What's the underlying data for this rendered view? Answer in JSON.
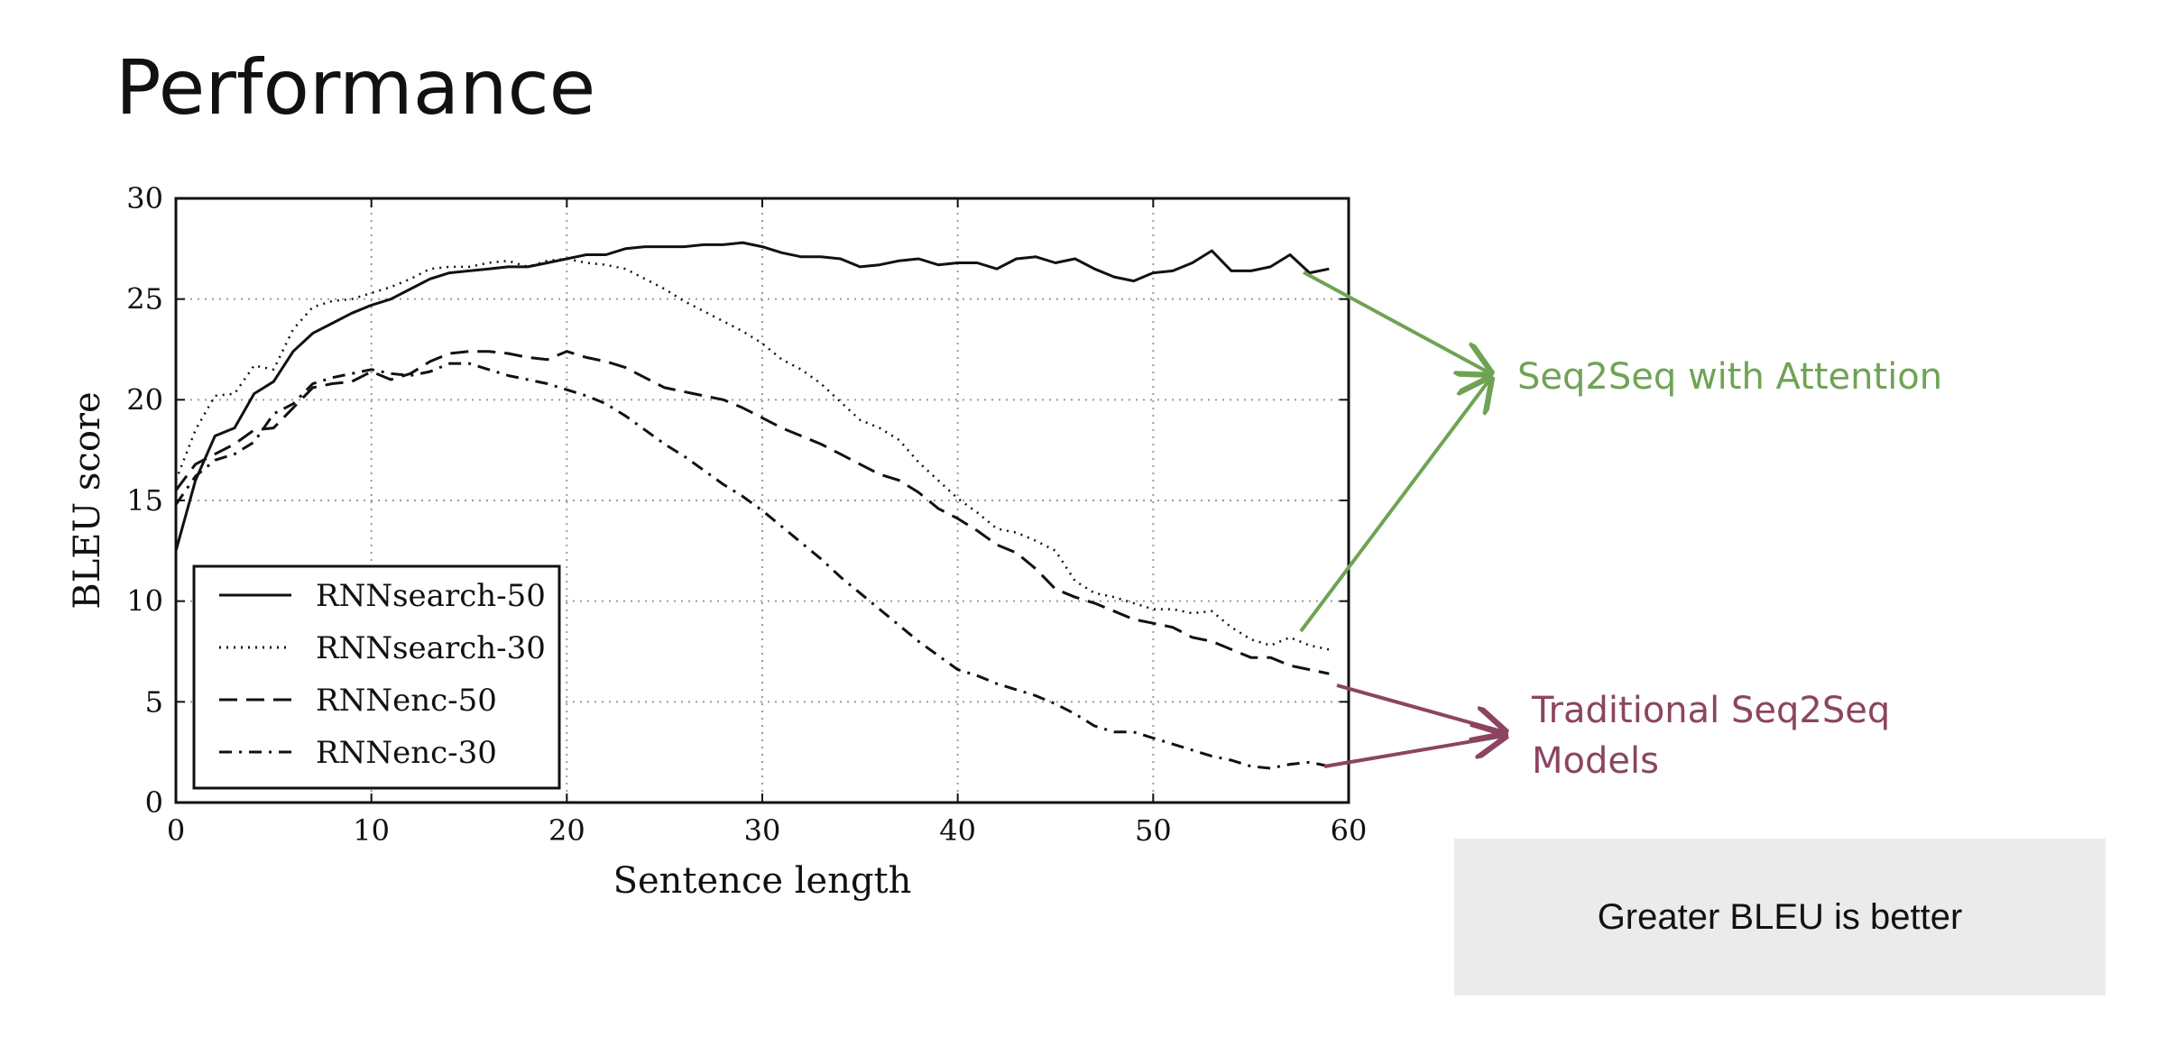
{
  "slide": {
    "title": "Performance"
  },
  "chart_data": {
    "type": "line",
    "xlabel": "Sentence length",
    "ylabel": "BLEU score",
    "xlim": [
      0,
      60
    ],
    "ylim": [
      0,
      30
    ],
    "xticks": [
      0,
      10,
      20,
      30,
      40,
      50,
      60
    ],
    "yticks": [
      0,
      5,
      10,
      15,
      20,
      25,
      30
    ],
    "grid": true,
    "legend_position": "bottom-left",
    "series": [
      {
        "name": "RNNsearch-50",
        "style": "solid",
        "x": [
          0,
          1,
          2,
          3,
          4,
          5,
          6,
          7,
          8,
          9,
          10,
          11,
          12,
          13,
          14,
          15,
          16,
          17,
          18,
          19,
          20,
          21,
          22,
          23,
          24,
          25,
          26,
          27,
          28,
          29,
          30,
          31,
          32,
          33,
          34,
          35,
          36,
          37,
          38,
          39,
          40,
          41,
          42,
          43,
          44,
          45,
          46,
          47,
          48,
          49,
          50,
          51,
          52,
          53,
          54,
          55,
          56,
          57,
          58,
          59
        ],
        "y": [
          12.5,
          16.0,
          18.2,
          18.6,
          20.3,
          20.9,
          22.4,
          23.3,
          23.8,
          24.3,
          24.7,
          25.0,
          25.5,
          26.0,
          26.3,
          26.4,
          26.5,
          26.6,
          26.6,
          26.8,
          27.0,
          27.2,
          27.2,
          27.5,
          27.6,
          27.6,
          27.6,
          27.7,
          27.7,
          27.8,
          27.6,
          27.3,
          27.1,
          27.1,
          27.0,
          26.6,
          26.7,
          26.9,
          27.0,
          26.7,
          26.8,
          26.8,
          26.5,
          27.0,
          27.1,
          26.8,
          27.0,
          26.5,
          26.1,
          25.9,
          26.3,
          26.4,
          26.8,
          27.4,
          26.4,
          26.4,
          26.6,
          27.2,
          26.3,
          26.5
        ]
      },
      {
        "name": "RNNsearch-30",
        "style": "dotted",
        "x": [
          0,
          1,
          2,
          3,
          4,
          5,
          6,
          7,
          8,
          9,
          10,
          11,
          12,
          13,
          14,
          15,
          16,
          17,
          18,
          19,
          20,
          21,
          22,
          23,
          24,
          25,
          26,
          27,
          28,
          29,
          30,
          31,
          32,
          33,
          34,
          35,
          36,
          37,
          38,
          39,
          40,
          41,
          42,
          43,
          44,
          45,
          46,
          47,
          48,
          49,
          50,
          51,
          52,
          53,
          54,
          55,
          56,
          57,
          58,
          59
        ],
        "y": [
          16.0,
          18.5,
          20.2,
          20.3,
          21.7,
          21.5,
          23.5,
          24.6,
          24.9,
          25.0,
          25.3,
          25.6,
          26.0,
          26.5,
          26.6,
          26.6,
          26.8,
          26.9,
          26.6,
          26.9,
          27.0,
          26.8,
          26.7,
          26.5,
          26.0,
          25.5,
          24.9,
          24.4,
          23.9,
          23.4,
          22.8,
          22.0,
          21.5,
          20.8,
          19.9,
          19.0,
          18.6,
          18.0,
          16.9,
          16.0,
          15.1,
          14.4,
          13.6,
          13.4,
          13.0,
          12.5,
          11.0,
          10.4,
          10.2,
          9.9,
          9.6,
          9.6,
          9.4,
          9.5,
          8.7,
          8.1,
          7.8,
          8.2,
          7.8,
          7.6
        ]
      },
      {
        "name": "RNNenc-50",
        "style": "dashed",
        "x": [
          0,
          1,
          2,
          3,
          4,
          5,
          6,
          7,
          8,
          9,
          10,
          11,
          12,
          13,
          14,
          15,
          16,
          17,
          18,
          19,
          20,
          21,
          22,
          23,
          24,
          25,
          26,
          27,
          28,
          29,
          30,
          31,
          32,
          33,
          34,
          35,
          36,
          37,
          38,
          39,
          40,
          41,
          42,
          43,
          44,
          45,
          46,
          47,
          48,
          49,
          50,
          51,
          52,
          53,
          54,
          55,
          56,
          57,
          58,
          59
        ],
        "y": [
          15.5,
          16.8,
          17.3,
          17.8,
          18.5,
          18.6,
          19.6,
          20.6,
          20.8,
          20.9,
          21.4,
          21.0,
          21.3,
          21.9,
          22.3,
          22.4,
          22.4,
          22.3,
          22.1,
          22.0,
          22.4,
          22.1,
          21.9,
          21.6,
          21.1,
          20.6,
          20.4,
          20.2,
          20.0,
          19.6,
          19.1,
          18.6,
          18.2,
          17.8,
          17.3,
          16.8,
          16.3,
          16.0,
          15.4,
          14.6,
          14.1,
          13.5,
          12.8,
          12.4,
          11.6,
          10.6,
          10.2,
          9.9,
          9.5,
          9.1,
          8.9,
          8.7,
          8.2,
          8.0,
          7.6,
          7.2,
          7.2,
          6.8,
          6.6,
          6.4
        ]
      },
      {
        "name": "RNNenc-30",
        "style": "dashdot",
        "x": [
          0,
          1,
          2,
          3,
          4,
          5,
          6,
          7,
          8,
          9,
          10,
          11,
          12,
          13,
          14,
          15,
          16,
          17,
          18,
          19,
          20,
          21,
          22,
          23,
          24,
          25,
          26,
          27,
          28,
          29,
          30,
          31,
          32,
          33,
          34,
          35,
          36,
          37,
          38,
          39,
          40,
          41,
          42,
          43,
          44,
          45,
          46,
          47,
          48,
          49,
          50,
          51,
          52,
          53,
          54,
          55,
          56,
          57,
          58,
          59
        ],
        "y": [
          14.8,
          16.2,
          17.0,
          17.3,
          17.9,
          19.3,
          19.8,
          20.8,
          21.1,
          21.3,
          21.5,
          21.3,
          21.2,
          21.4,
          21.8,
          21.8,
          21.5,
          21.2,
          21.0,
          20.8,
          20.5,
          20.2,
          19.8,
          19.2,
          18.5,
          17.8,
          17.2,
          16.5,
          15.8,
          15.2,
          14.5,
          13.7,
          12.9,
          12.1,
          11.2,
          10.4,
          9.6,
          8.8,
          8.0,
          7.3,
          6.6,
          6.3,
          5.9,
          5.6,
          5.3,
          4.9,
          4.4,
          3.8,
          3.5,
          3.5,
          3.2,
          2.9,
          2.6,
          2.3,
          2.1,
          1.8,
          1.7,
          1.9,
          2.0,
          1.8
        ]
      }
    ]
  },
  "annotations": {
    "attention_label": "Seq2Seq with Attention",
    "traditional_label": "Traditional Seq2Seq Models",
    "attention_color": "#6fa354",
    "traditional_color": "#8b4560"
  },
  "note": {
    "text": "Greater BLEU is better"
  }
}
